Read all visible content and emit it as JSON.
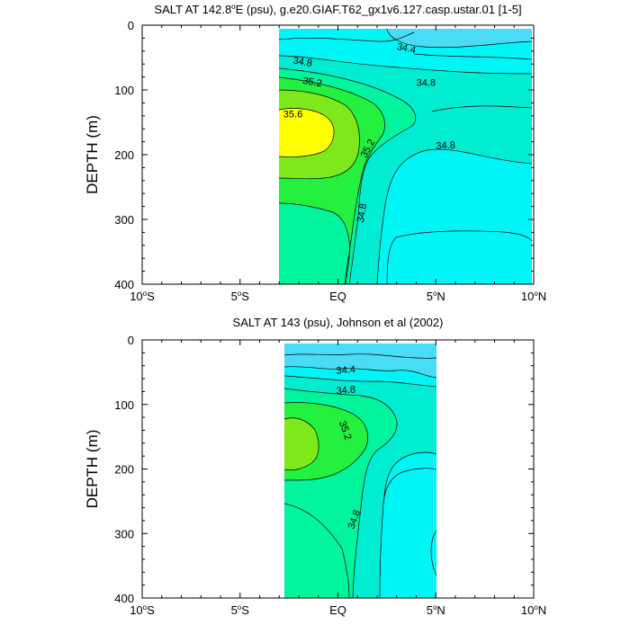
{
  "colors": {
    "c_low": "#49dcf7",
    "c_34_6": "#00f6f6",
    "c_34_8": "#00edd2",
    "c_35_0": "#00f59c",
    "c_35_2": "#24f040",
    "c_35_4": "#7ee91a",
    "c_35_6": "#ffff00",
    "line": "#000000"
  },
  "chart_data": [
    {
      "type": "contour",
      "title": "SALT AT 142.8°E (psu), g.e20.GIAF.T62_gx1v6.127.casp.ustar.01 [1-5]",
      "title_parts": {
        "pre": "SALT AT 142.8",
        "deg": "o",
        "post": "E (psu), g.e20.GIAF.T62_gx1v6.127.casp.ustar.01 [1-5]"
      },
      "ylabel": "DEPTH (m)",
      "x_ticks": [
        {
          "value": -10,
          "num": "10",
          "sup": "o",
          "hem": "S"
        },
        {
          "value": -5,
          "num": "5",
          "sup": "o",
          "hem": "S"
        },
        {
          "value": 0,
          "num": "EQ",
          "sup": "",
          "hem": ""
        },
        {
          "value": 5,
          "num": "5",
          "sup": "o",
          "hem": "N"
        },
        {
          "value": 10,
          "num": "10",
          "sup": "o",
          "hem": "N"
        }
      ],
      "y_ticks": [
        0,
        100,
        200,
        300,
        400
      ],
      "xlim": [
        -10,
        10
      ],
      "ylim": [
        400,
        0
      ],
      "data_extent": {
        "lat": [
          -3,
          10
        ],
        "depth": [
          5,
          400
        ]
      },
      "contour_levels": [
        34.4,
        34.6,
        34.8,
        35.0,
        35.2,
        35.4,
        35.6
      ],
      "contour_labels": [
        {
          "text": "34.4",
          "lat": 3.5,
          "depth": 35,
          "angle": 12
        },
        {
          "text": "34.8",
          "lat": -1.8,
          "depth": 56,
          "angle": 10
        },
        {
          "text": "35.2",
          "lat": -1.3,
          "depth": 87,
          "angle": 10
        },
        {
          "text": "34.8",
          "lat": 4.5,
          "depth": 88,
          "angle": 0
        },
        {
          "text": "35.6",
          "lat": -2.3,
          "depth": 137,
          "angle": 0
        },
        {
          "text": "35.2",
          "lat": 1.5,
          "depth": 190,
          "angle": -62
        },
        {
          "text": "34.8",
          "lat": 5.5,
          "depth": 185,
          "angle": -3
        },
        {
          "text": "34.8",
          "lat": 1.2,
          "depth": 290,
          "angle": -80
        }
      ]
    },
    {
      "type": "contour",
      "title": "SALT AT 143 (psu), Johnson et al (2002)",
      "ylabel": "DEPTH (m)",
      "x_ticks": [
        {
          "value": -10,
          "num": "10",
          "sup": "o",
          "hem": "S"
        },
        {
          "value": -5,
          "num": "5",
          "sup": "o",
          "hem": "S"
        },
        {
          "value": 0,
          "num": "EQ",
          "sup": "",
          "hem": ""
        },
        {
          "value": 5,
          "num": "5",
          "sup": "o",
          "hem": "N"
        },
        {
          "value": 10,
          "num": "10",
          "sup": "o",
          "hem": "N"
        }
      ],
      "y_ticks": [
        0,
        100,
        200,
        300,
        400
      ],
      "xlim": [
        -10,
        10
      ],
      "ylim": [
        400,
        0
      ],
      "data_extent": {
        "lat": [
          -2.8,
          5
        ],
        "depth": [
          5,
          400
        ]
      },
      "contour_levels": [
        34.4,
        34.6,
        34.8,
        35.0,
        35.2,
        35.4
      ],
      "contour_labels": [
        {
          "text": "34.4",
          "lat": 0.4,
          "depth": 46,
          "angle": -5
        },
        {
          "text": "34.8",
          "lat": 0.4,
          "depth": 77,
          "angle": -5
        },
        {
          "text": "35.2",
          "lat": 0.4,
          "depth": 140,
          "angle": 70
        },
        {
          "text": "34.8",
          "lat": 0.8,
          "depth": 278,
          "angle": -70
        }
      ]
    }
  ]
}
